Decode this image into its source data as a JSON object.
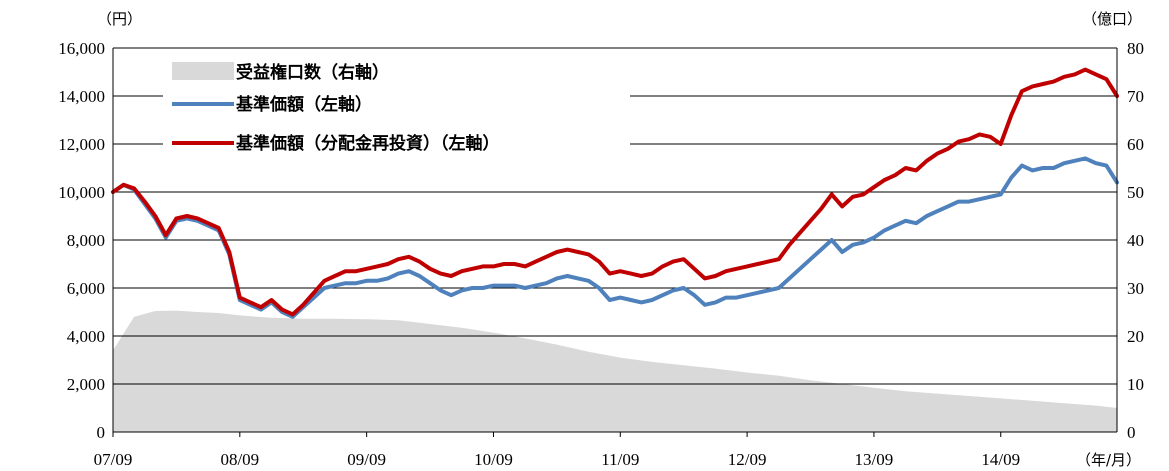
{
  "chart_data": {
    "type": "line",
    "left_axis": {
      "unit_label": "（円）",
      "min": 0,
      "max": 16000,
      "ticks": [
        "0",
        "2,000",
        "4,000",
        "6,000",
        "8,000",
        "10,000",
        "12,000",
        "14,000",
        "16,000"
      ]
    },
    "right_axis": {
      "unit_label": "（億口）",
      "min": 0,
      "max": 80,
      "ticks": [
        "0",
        "10",
        "20",
        "30",
        "40",
        "50",
        "60",
        "70",
        "80"
      ]
    },
    "x_axis": {
      "unit_label": "（年/月）",
      "ticks": [
        "07/09",
        "08/09",
        "09/09",
        "10/09",
        "11/09",
        "12/09",
        "13/09",
        "14/09"
      ],
      "range": [
        "2007-09",
        "2015-08"
      ]
    },
    "grid": true,
    "legend_placement": "top-left",
    "series": [
      {
        "name": "受益権口数（右軸）",
        "kind": "area",
        "axis": "right",
        "color": "#d9d9d9",
        "x": [
          "2007-09",
          "2007-11",
          "2008-01",
          "2008-03",
          "2008-05",
          "2008-07",
          "2008-09",
          "2008-12",
          "2009-03",
          "2009-06",
          "2009-09",
          "2009-12",
          "2010-03",
          "2010-06",
          "2010-09",
          "2010-12",
          "2011-03",
          "2011-06",
          "2011-09",
          "2011-12",
          "2012-03",
          "2012-06",
          "2012-09",
          "2012-12",
          "2013-03",
          "2013-06",
          "2013-09",
          "2013-12",
          "2014-03",
          "2014-06",
          "2014-09",
          "2014-12",
          "2015-03",
          "2015-06",
          "2015-08"
        ],
        "values": [
          17,
          24,
          25.2,
          25.3,
          25,
          24.8,
          24.3,
          23.8,
          23.6,
          23.6,
          23.5,
          23.3,
          22.5,
          21.7,
          20.7,
          19.5,
          18.2,
          16.7,
          15.5,
          14.6,
          13.9,
          13.2,
          12.4,
          11.7,
          10.8,
          10,
          9.2,
          8.5,
          8,
          7.5,
          7,
          6.5,
          6,
          5.5,
          5
        ]
      },
      {
        "name": "基準価額（左軸）",
        "kind": "line",
        "axis": "left",
        "color": "#4f81bd",
        "x": [
          "2007-09",
          "2007-10",
          "2007-11",
          "2007-12",
          "2008-01",
          "2008-02",
          "2008-03",
          "2008-04",
          "2008-05",
          "2008-06",
          "2008-07",
          "2008-08",
          "2008-09",
          "2008-10",
          "2008-11",
          "2008-12",
          "2009-01",
          "2009-02",
          "2009-03",
          "2009-04",
          "2009-05",
          "2009-06",
          "2009-07",
          "2009-08",
          "2009-09",
          "2009-10",
          "2009-11",
          "2009-12",
          "2010-01",
          "2010-02",
          "2010-03",
          "2010-04",
          "2010-05",
          "2010-06",
          "2010-07",
          "2010-08",
          "2010-09",
          "2010-10",
          "2010-11",
          "2010-12",
          "2011-01",
          "2011-02",
          "2011-03",
          "2011-04",
          "2011-05",
          "2011-06",
          "2011-07",
          "2011-08",
          "2011-09",
          "2011-10",
          "2011-11",
          "2011-12",
          "2012-01",
          "2012-02",
          "2012-03",
          "2012-04",
          "2012-05",
          "2012-06",
          "2012-07",
          "2012-08",
          "2012-09",
          "2012-10",
          "2012-11",
          "2012-12",
          "2013-01",
          "2013-02",
          "2013-03",
          "2013-04",
          "2013-05",
          "2013-06",
          "2013-07",
          "2013-08",
          "2013-09",
          "2013-10",
          "2013-11",
          "2013-12",
          "2014-01",
          "2014-02",
          "2014-03",
          "2014-04",
          "2014-05",
          "2014-06",
          "2014-07",
          "2014-08",
          "2014-09",
          "2014-10",
          "2014-11",
          "2014-12",
          "2015-01",
          "2015-02",
          "2015-03",
          "2015-04",
          "2015-05",
          "2015-06",
          "2015-07",
          "2015-08"
        ],
        "values": [
          10000,
          10300,
          10100,
          9500,
          8900,
          8100,
          8800,
          8900,
          8800,
          8600,
          8400,
          7400,
          5500,
          5300,
          5100,
          5400,
          5000,
          4800,
          5200,
          5600,
          6000,
          6100,
          6200,
          6200,
          6300,
          6300,
          6400,
          6600,
          6700,
          6500,
          6200,
          5900,
          5700,
          5900,
          6000,
          6000,
          6100,
          6100,
          6100,
          6000,
          6100,
          6200,
          6400,
          6500,
          6400,
          6300,
          6000,
          5500,
          5600,
          5500,
          5400,
          5500,
          5700,
          5900,
          6000,
          5700,
          5300,
          5400,
          5600,
          5600,
          5700,
          5800,
          5900,
          6000,
          6400,
          6800,
          7200,
          7600,
          8000,
          7500,
          7800,
          7900,
          8100,
          8400,
          8600,
          8800,
          8700,
          9000,
          9200,
          9400,
          9600,
          9600,
          9700,
          9800,
          9900,
          10600,
          11100,
          10900,
          11000,
          11000,
          11200,
          11300,
          11400,
          11200,
          11100,
          10400
        ]
      },
      {
        "name": "基準価額（分配金再投資）（左軸）",
        "kind": "line",
        "axis": "left",
        "color": "#c00000",
        "x": [
          "2007-09",
          "2007-10",
          "2007-11",
          "2007-12",
          "2008-01",
          "2008-02",
          "2008-03",
          "2008-04",
          "2008-05",
          "2008-06",
          "2008-07",
          "2008-08",
          "2008-09",
          "2008-10",
          "2008-11",
          "2008-12",
          "2009-01",
          "2009-02",
          "2009-03",
          "2009-04",
          "2009-05",
          "2009-06",
          "2009-07",
          "2009-08",
          "2009-09",
          "2009-10",
          "2009-11",
          "2009-12",
          "2010-01",
          "2010-02",
          "2010-03",
          "2010-04",
          "2010-05",
          "2010-06",
          "2010-07",
          "2010-08",
          "2010-09",
          "2010-10",
          "2010-11",
          "2010-12",
          "2011-01",
          "2011-02",
          "2011-03",
          "2011-04",
          "2011-05",
          "2011-06",
          "2011-07",
          "2011-08",
          "2011-09",
          "2011-10",
          "2011-11",
          "2011-12",
          "2012-01",
          "2012-02",
          "2012-03",
          "2012-04",
          "2012-05",
          "2012-06",
          "2012-07",
          "2012-08",
          "2012-09",
          "2012-10",
          "2012-11",
          "2012-12",
          "2013-01",
          "2013-02",
          "2013-03",
          "2013-04",
          "2013-05",
          "2013-06",
          "2013-07",
          "2013-08",
          "2013-09",
          "2013-10",
          "2013-11",
          "2013-12",
          "2014-01",
          "2014-02",
          "2014-03",
          "2014-04",
          "2014-05",
          "2014-06",
          "2014-07",
          "2014-08",
          "2014-09",
          "2014-10",
          "2014-11",
          "2014-12",
          "2015-01",
          "2015-02",
          "2015-03",
          "2015-04",
          "2015-05",
          "2015-06",
          "2015-07",
          "2015-08"
        ],
        "values": [
          10000,
          10300,
          10150,
          9600,
          9000,
          8200,
          8900,
          9000,
          8900,
          8700,
          8500,
          7500,
          5600,
          5400,
          5200,
          5500,
          5100,
          4900,
          5300,
          5800,
          6300,
          6500,
          6700,
          6700,
          6800,
          6900,
          7000,
          7200,
          7300,
          7100,
          6800,
          6600,
          6500,
          6700,
          6800,
          6900,
          6900,
          7000,
          7000,
          6900,
          7100,
          7300,
          7500,
          7600,
          7500,
          7400,
          7100,
          6600,
          6700,
          6600,
          6500,
          6600,
          6900,
          7100,
          7200,
          6800,
          6400,
          6500,
          6700,
          6800,
          6900,
          7000,
          7100,
          7200,
          7800,
          8300,
          8800,
          9300,
          9900,
          9400,
          9800,
          9900,
          10200,
          10500,
          10700,
          11000,
          10900,
          11300,
          11600,
          11800,
          12100,
          12200,
          12400,
          12300,
          12000,
          13200,
          14200,
          14400,
          14500,
          14600,
          14800,
          14900,
          15100,
          14900,
          14700,
          14000
        ]
      }
    ]
  }
}
